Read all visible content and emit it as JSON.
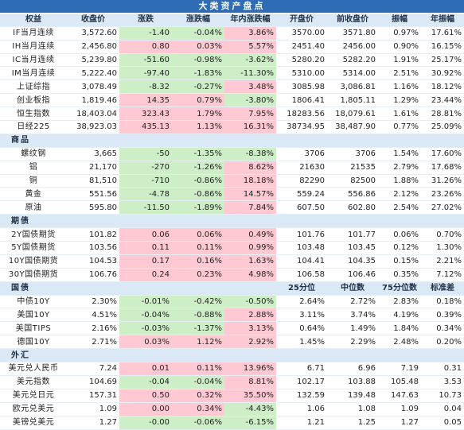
{
  "title": "大类资产盘点",
  "colors": {
    "positive": "#ffc9d3",
    "negative": "#cdeec6",
    "header": "#dbe8f5",
    "title": "#2e6db6"
  },
  "header": [
    "权益",
    "收盘价",
    "涨跌",
    "涨跌幅",
    "年内涨跌幅",
    "开盘价",
    "前收盘价",
    "振幅",
    "年振幅"
  ],
  "equity": [
    {
      "name": "IF当月连续",
      "close": "3,572.60",
      "chg": "-1.40",
      "pct": "-0.04%",
      "ytd": "3.86%",
      "open": "3570.00",
      "prev": "3571.80",
      "amp": "0.97%",
      "yamp": "17.61%"
    },
    {
      "name": "IH当月连续",
      "close": "2,456.80",
      "chg": "0.80",
      "pct": "0.03%",
      "ytd": "5.57%",
      "open": "2451.40",
      "prev": "2456.00",
      "amp": "0.90%",
      "yamp": "16.15%"
    },
    {
      "name": "IC当月连续",
      "close": "5,239.80",
      "chg": "-51.60",
      "pct": "-0.98%",
      "ytd": "-3.62%",
      "open": "5280.20",
      "prev": "5282.20",
      "amp": "1.91%",
      "yamp": "25.17%"
    },
    {
      "name": "IM当月连续",
      "close": "5,222.40",
      "chg": "-97.40",
      "pct": "-1.83%",
      "ytd": "-11.30%",
      "open": "5310.00",
      "prev": "5314.00",
      "amp": "2.51%",
      "yamp": "30.92%"
    },
    {
      "name": "上证综指",
      "close": "3,078.49",
      "chg": "-8.32",
      "pct": "-0.27%",
      "ytd": "3.48%",
      "open": "3085.98",
      "prev": "3,086.81",
      "amp": "1.16%",
      "yamp": "18.12%"
    },
    {
      "name": "创业板指",
      "close": "1,819.46",
      "chg": "14.35",
      "pct": "0.79%",
      "ytd": "-3.80%",
      "open": "1806.41",
      "prev": "1,805.11",
      "amp": "1.29%",
      "yamp": "23.44%"
    },
    {
      "name": "恒生指数",
      "close": "18,403.04",
      "chg": "323.43",
      "pct": "1.79%",
      "ytd": "7.95%",
      "open": "18283.56",
      "prev": "18,079.61",
      "amp": "1.61%",
      "yamp": "28.81%"
    },
    {
      "name": "日经225",
      "close": "38,923.03",
      "chg": "435.13",
      "pct": "1.13%",
      "ytd": "16.31%",
      "open": "38734.95",
      "prev": "38,487.90",
      "amp": "0.77%",
      "yamp": "25.09%"
    }
  ],
  "commodity_label": "商品",
  "commodities": [
    {
      "name": "螺纹钢",
      "close": "3,665",
      "chg": "-50",
      "pct": "-1.35%",
      "ytd": "-8.38%",
      "open": "3706",
      "prev": "3706",
      "amp": "1.54%",
      "yamp": "17.60%"
    },
    {
      "name": "铝",
      "close": "21,170",
      "chg": "-270",
      "pct": "-1.26%",
      "ytd": "8.62%",
      "open": "21630",
      "prev": "21535",
      "amp": "2.79%",
      "yamp": "17.68%"
    },
    {
      "name": "铜",
      "close": "81,510",
      "chg": "-710",
      "pct": "-0.86%",
      "ytd": "18.18%",
      "open": "82290",
      "prev": "82500",
      "amp": "1.88%",
      "yamp": "31.26%"
    },
    {
      "name": "黄金",
      "close": "551.56",
      "chg": "-4.78",
      "pct": "-0.86%",
      "ytd": "14.57%",
      "open": "559.24",
      "prev": "556.86",
      "amp": "2.12%",
      "yamp": "23.26%"
    },
    {
      "name": "原油",
      "close": "595.80",
      "chg": "-11.50",
      "pct": "-1.89%",
      "ytd": "7.84%",
      "open": "607.50",
      "prev": "602.80",
      "amp": "2.54%",
      "yamp": "27.02%"
    }
  ],
  "futures_label": "期债",
  "bond_futures": [
    {
      "name": "2Y国债期货",
      "close": "101.82",
      "chg": "0.06",
      "pct": "0.06%",
      "ytd": "0.49%",
      "open": "101.76",
      "prev": "101.77",
      "amp": "0.06%",
      "yamp": "0.70%"
    },
    {
      "name": "5Y国债期货",
      "close": "103.56",
      "chg": "0.11",
      "pct": "0.11%",
      "ytd": "0.99%",
      "open": "103.48",
      "prev": "103.45",
      "amp": "0.12%",
      "yamp": "1.30%"
    },
    {
      "name": "10Y国债期货",
      "close": "104.53",
      "chg": "0.17",
      "pct": "0.16%",
      "ytd": "1.63%",
      "open": "104.41",
      "prev": "104.35",
      "amp": "0.15%",
      "yamp": "2.21%"
    },
    {
      "name": "30Y国债期货",
      "close": "106.76",
      "chg": "0.24",
      "pct": "0.23%",
      "ytd": "4.98%",
      "open": "106.58",
      "prev": "106.46",
      "amp": "0.35%",
      "yamp": "7.12%"
    }
  ],
  "bond_header": [
    "国债",
    "",
    "",
    "",
    "",
    "25分位",
    "中位数",
    "75分位数",
    "标准差"
  ],
  "bonds": [
    {
      "name": "中债10Y",
      "close": "2.30%",
      "chg": "-0.01%",
      "pct": "-0.42%",
      "ytd": "-0.50%",
      "open": "2.64%",
      "prev": "2.72%",
      "amp": "2.83%",
      "yamp": "0.18%"
    },
    {
      "name": "美国10Y",
      "close": "4.51%",
      "chg": "-0.04%",
      "pct": "-0.88%",
      "ytd": "2.88%",
      "open": "3.11%",
      "prev": "3.74%",
      "amp": "4.19%",
      "yamp": "0.39%"
    },
    {
      "name": "美国TIPS",
      "close": "2.16%",
      "chg": "-0.03%",
      "pct": "-1.37%",
      "ytd": "3.13%",
      "open": "0.64%",
      "prev": "1.49%",
      "amp": "1.84%",
      "yamp": "0.34%"
    },
    {
      "name": "德国10Y",
      "close": "2.71%",
      "chg": "0.03%",
      "pct": "1.12%",
      "ytd": "2.92%",
      "open": "1.45%",
      "prev": "2.29%",
      "amp": "2.48%",
      "yamp": "0.20%"
    }
  ],
  "fx_label": "外汇",
  "fx": [
    {
      "name": "美元兑人民币",
      "close": "7.24",
      "chg": "0.01",
      "pct": "0.11%",
      "ytd": "13.96%",
      "open": "6.71",
      "prev": "6.96",
      "amp": "7.19",
      "yamp": "0.31"
    },
    {
      "name": "美元指数",
      "close": "104.69",
      "chg": "-0.04",
      "pct": "-0.04%",
      "ytd": "8.81%",
      "open": "102.17",
      "prev": "103.88",
      "amp": "105.48",
      "yamp": "3.53"
    },
    {
      "name": "美元兑日元",
      "close": "157.31",
      "chg": "0.50",
      "pct": "0.32%",
      "ytd": "35.50%",
      "open": "132.59",
      "prev": "139.48",
      "amp": "147.63",
      "yamp": "10.73"
    },
    {
      "name": "欧元兑美元",
      "close": "1.09",
      "chg": "0.00",
      "pct": "0.34%",
      "ytd": "-4.43%",
      "open": "1.06",
      "prev": "1.08",
      "amp": "1.09",
      "yamp": "0.04"
    },
    {
      "name": "美镑兑美元",
      "close": "1.27",
      "chg": "-0.00",
      "pct": "-0.06%",
      "ytd": "-6.15%",
      "open": "1.21",
      "prev": "1.25",
      "amp": "1.27",
      "yamp": "0.05"
    }
  ]
}
